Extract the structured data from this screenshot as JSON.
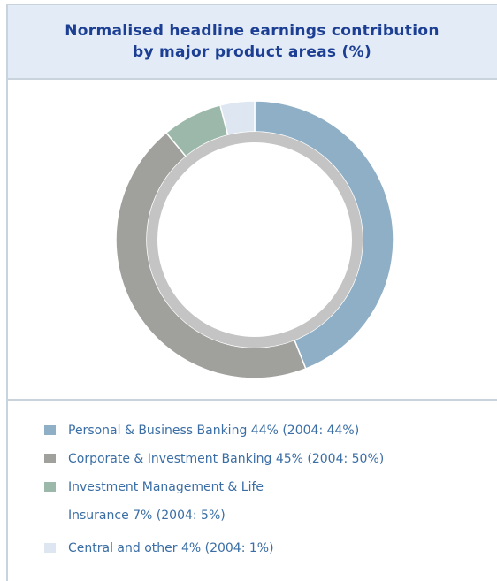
{
  "chart_data": {
    "type": "donut",
    "title": "Normalised headline earnings contribution\nby major product areas (%)",
    "categories": [
      "Personal & Business Banking 44% (2004: 44%)",
      "Corporate & Investment Banking 45% (2004: 50%)",
      "Investment Management & Life\nInsurance 7% (2004: 5%)",
      "Central and other 4% (2004: 1%)"
    ],
    "values": [
      44,
      45,
      7,
      4
    ],
    "colors": [
      "#8eafc6",
      "#a0a09c",
      "#9cb8aa",
      "#dde6f1"
    ]
  }
}
